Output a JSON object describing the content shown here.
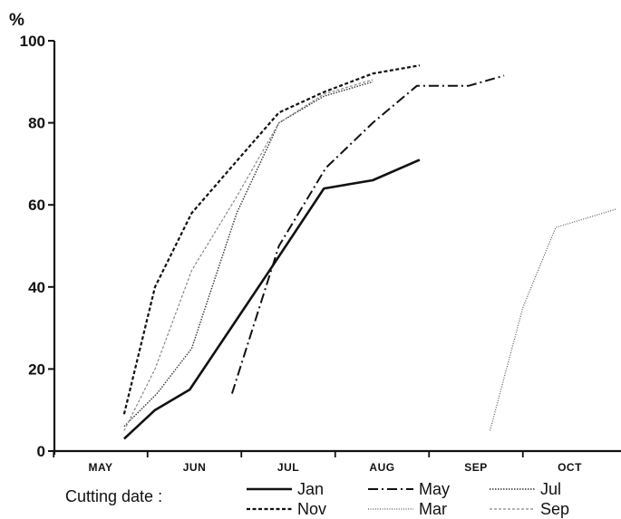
{
  "chart_data": {
    "type": "line",
    "title": "",
    "ylabel": "%",
    "xlabel": "",
    "ylim": [
      0,
      100
    ],
    "yticks": [
      0,
      20,
      40,
      60,
      80,
      100
    ],
    "xlim": [
      4.5,
      10.5
    ],
    "xticks": [
      {
        "label": "MAY",
        "value": 5
      },
      {
        "label": "JUN",
        "value": 6
      },
      {
        "label": "JUL",
        "value": 7
      },
      {
        "label": "AUG",
        "value": 8
      },
      {
        "label": "SEP",
        "value": 9
      },
      {
        "label": "OCT",
        "value": 10
      }
    ],
    "grid": false,
    "legend": {
      "title": "Cutting date :",
      "placement": "bottom"
    },
    "series": [
      {
        "name": "Jan",
        "color": "#111111",
        "style": "solid",
        "points": [
          [
            5.25,
            3
          ],
          [
            5.58,
            10
          ],
          [
            5.95,
            15
          ],
          [
            6.8,
            44
          ],
          [
            7.38,
            64
          ],
          [
            7.9,
            66
          ],
          [
            8.4,
            71
          ]
        ]
      },
      {
        "name": "May",
        "color": "#111111",
        "style": "dashdot",
        "points": [
          [
            6.4,
            14
          ],
          [
            6.9,
            50
          ],
          [
            7.4,
            69
          ],
          [
            7.9,
            80
          ],
          [
            8.37,
            89
          ],
          [
            8.92,
            89
          ],
          [
            9.3,
            91.5
          ]
        ]
      },
      {
        "name": "Jul",
        "color": "#333333",
        "style": "dotted",
        "points": [
          [
            5.25,
            6
          ],
          [
            5.6,
            14
          ],
          [
            5.97,
            25
          ],
          [
            6.45,
            58
          ],
          [
            6.9,
            80
          ],
          [
            7.38,
            86.5
          ],
          [
            7.9,
            90
          ]
        ]
      },
      {
        "name": "Nov",
        "color": "#111111",
        "style": "dashed",
        "points": [
          [
            5.25,
            9
          ],
          [
            5.58,
            40
          ],
          [
            5.97,
            58
          ],
          [
            6.5,
            72
          ],
          [
            6.9,
            82.5
          ],
          [
            7.38,
            87.5
          ],
          [
            7.9,
            92
          ],
          [
            8.4,
            94
          ]
        ]
      },
      {
        "name": "Mar",
        "color": "#555555",
        "style": "finedot",
        "points": [
          [
            9.15,
            5
          ],
          [
            9.5,
            35
          ],
          [
            9.85,
            54.5
          ],
          [
            10.5,
            59
          ]
        ]
      },
      {
        "name": "Sep",
        "color": "#888888",
        "style": "lightdash",
        "points": [
          [
            5.25,
            5
          ],
          [
            5.58,
            20
          ],
          [
            5.97,
            44
          ],
          [
            6.45,
            62
          ],
          [
            6.9,
            80
          ],
          [
            7.38,
            87
          ],
          [
            7.9,
            90.5
          ]
        ]
      }
    ]
  }
}
